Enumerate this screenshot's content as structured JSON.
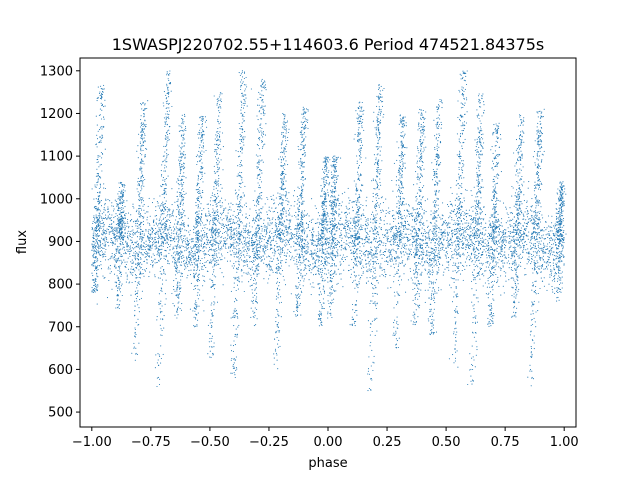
{
  "chart_data": {
    "type": "scatter",
    "title": "1SWASPJ220702.55+114603.6 Period 474521.84375s",
    "xlabel": "phase",
    "ylabel": "flux",
    "xlim": [
      -1.05,
      1.05
    ],
    "ylim": [
      465,
      1330
    ],
    "x_ticks": [
      -1.0,
      -0.75,
      -0.5,
      -0.25,
      0.0,
      0.25,
      0.5,
      0.75,
      1.0
    ],
    "x_tick_labels": [
      "−1.00",
      "−0.75",
      "−0.50",
      "−0.25",
      "0.00",
      "0.25",
      "0.50",
      "0.75",
      "1.00"
    ],
    "y_ticks": [
      500,
      600,
      700,
      800,
      900,
      1000,
      1100,
      1200,
      1300
    ],
    "y_tick_labels": [
      "500",
      "600",
      "700",
      "800",
      "900",
      "1000",
      "1100",
      "1200",
      "1300"
    ],
    "grid": false,
    "legend": "none",
    "marker_color": "#1f77b4",
    "distribution": {
      "description_values": "dense band of flux between ~780 and ~1000 across all phases, with clustered streaks reaching up to ~1300 and down to ~530",
      "band_center": 900,
      "band_spread": 45,
      "streak_phases": [
        -0.98,
        -0.88,
        -0.8,
        -0.7,
        -0.63,
        -0.55,
        -0.48,
        -0.38,
        -0.3,
        -0.2,
        -0.12,
        -0.02,
        0.02,
        0.12,
        0.2,
        0.3,
        0.38,
        0.45,
        0.55,
        0.63,
        0.7,
        0.8,
        0.88,
        0.98
      ],
      "streak_high": [
        1270,
        1040,
        1230,
        1300,
        1200,
        1200,
        1250,
        1300,
        1280,
        1200,
        1220,
        1100,
        1100,
        1230,
        1270,
        1200,
        1210,
        1240,
        1300,
        1250,
        1180,
        1200,
        1210,
        1040
      ],
      "streak_low": [
        780,
        740,
        620,
        560,
        720,
        700,
        620,
        580,
        700,
        600,
        720,
        700,
        720,
        700,
        550,
        650,
        700,
        680,
        600,
        560,
        700,
        720,
        560,
        760
      ]
    }
  }
}
